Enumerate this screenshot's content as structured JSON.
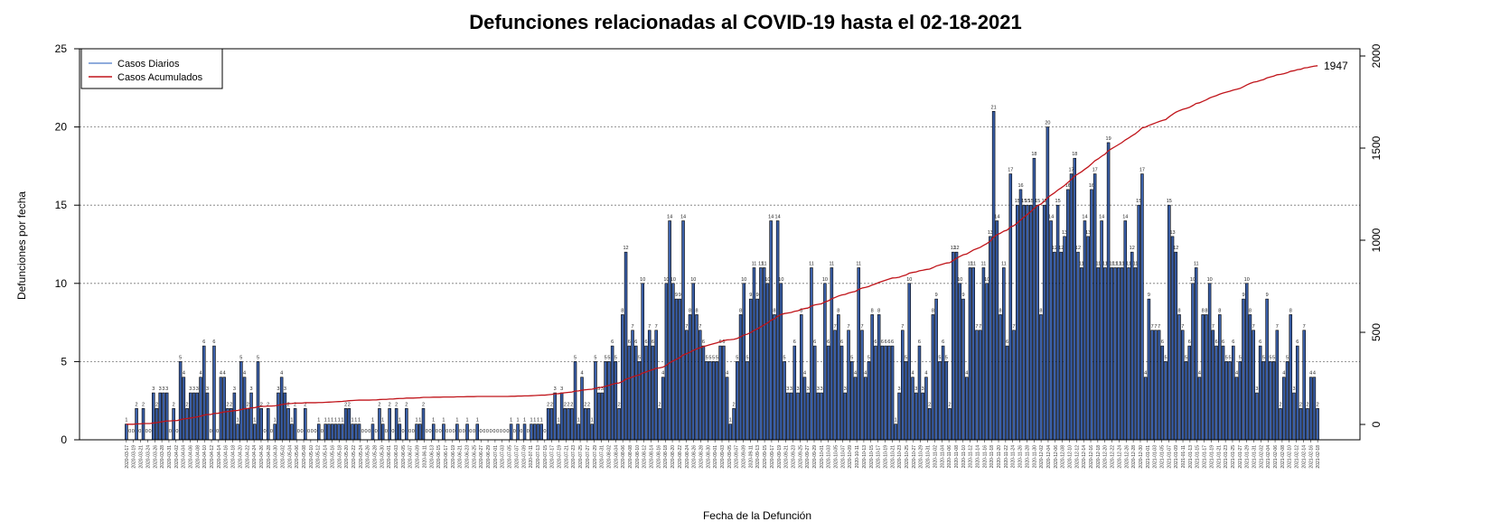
{
  "chart_data": {
    "type": "bar",
    "title": "Defunciones relacionadas al COVID-19 hasta el 02-18-2021",
    "xlabel": "Fecha de la Defunción",
    "ylabel": "Defunciones por fecha",
    "ylim": [
      0,
      25
    ],
    "y_ticks": [
      0,
      5,
      10,
      15,
      20,
      25
    ],
    "y2lim": [
      0,
      2000
    ],
    "y2_ticks": [
      0,
      500,
      1000,
      1500,
      2000
    ],
    "grid": "horizontal dotted",
    "legend_position": "top-left",
    "start_date": "2020-03-17",
    "end_date": "2021-02-18",
    "colors": {
      "bars": "#3a5fa8",
      "bar_edge": "#000000",
      "cumulative": "#c0141a",
      "daily_legend": "#6a8fd0"
    },
    "series": [
      {
        "name": "Casos Diarios",
        "values": [
          1,
          0,
          0,
          2,
          0,
          2,
          0,
          0,
          3,
          2,
          3,
          3,
          3,
          0,
          2,
          0,
          5,
          4,
          2,
          3,
          3,
          3,
          4,
          6,
          3,
          0,
          6,
          0,
          4,
          4,
          2,
          2,
          3,
          1,
          5,
          4,
          2,
          3,
          1,
          5,
          2,
          0,
          2,
          0,
          1,
          3,
          4,
          3,
          2,
          1,
          2,
          0,
          0,
          2,
          0,
          0,
          0,
          1,
          0,
          1,
          1,
          1,
          1,
          1,
          1,
          2,
          2,
          1,
          1,
          1,
          0,
          0,
          0,
          1,
          0,
          2,
          1,
          0,
          2,
          0,
          2,
          1,
          0,
          2,
          0,
          0,
          1,
          1,
          2,
          0,
          0,
          1,
          0,
          0,
          1,
          0,
          0,
          0,
          1,
          0,
          0,
          1,
          0,
          0,
          1,
          0,
          0,
          0,
          0,
          0,
          0,
          0,
          0,
          0,
          1,
          0,
          1,
          0,
          1,
          0,
          1,
          1,
          1,
          1,
          0,
          2,
          2,
          3,
          1,
          3,
          2,
          2,
          2,
          5,
          1,
          4,
          2,
          2,
          1,
          5,
          3,
          3,
          5,
          5,
          6,
          5,
          2,
          8,
          12,
          6,
          7,
          6,
          5,
          10,
          6,
          7,
          6,
          7,
          2,
          4,
          10,
          14,
          10,
          9,
          9,
          14,
          7,
          8,
          10,
          8,
          7,
          6,
          5,
          5,
          5,
          5,
          6,
          6,
          4,
          1,
          2,
          5,
          8,
          10,
          5,
          9,
          11,
          9,
          11,
          11,
          10,
          14,
          8,
          14,
          10,
          5,
          3,
          3,
          6,
          3,
          8,
          4,
          3,
          11,
          6,
          3,
          3,
          10,
          6,
          11,
          7,
          8,
          6,
          3,
          7,
          5,
          4,
          11,
          7,
          4,
          5,
          8,
          6,
          8,
          6,
          6,
          6,
          6,
          1,
          3,
          7,
          5,
          10,
          4,
          3,
          6,
          3,
          4,
          2,
          8,
          9,
          5,
          6,
          5,
          2,
          12,
          12,
          10,
          9,
          4,
          11,
          11,
          7,
          7,
          11,
          10,
          13,
          21,
          14,
          8,
          11,
          6,
          17,
          7,
          15,
          16,
          15,
          15,
          15,
          18,
          15,
          8,
          15,
          20,
          14,
          12,
          15,
          12,
          13,
          16,
          17,
          18,
          12,
          11,
          14,
          13,
          16,
          17,
          11,
          14,
          11,
          19,
          11,
          11,
          11,
          11,
          14,
          11,
          12,
          11,
          15,
          17,
          4,
          9,
          7,
          7,
          7,
          6,
          5,
          15,
          13,
          12,
          8,
          7,
          5,
          6,
          10,
          11,
          4,
          8,
          8,
          10,
          7,
          6,
          8,
          6,
          5,
          5,
          6,
          4,
          5,
          9,
          10,
          8,
          7,
          3,
          6,
          5,
          9,
          5,
          5,
          7,
          2,
          4,
          5,
          8,
          3,
          6,
          2,
          7,
          2,
          4,
          4,
          2
        ]
      },
      {
        "name": "Casos Acumulados",
        "final_value": 1947
      }
    ],
    "date_labels": [
      "2020-03-17",
      "2020-03-19",
      "2020-03-21",
      "2020-03-24",
      "2020-03-26",
      "2020-03-28",
      "2020-03-31",
      "2020-04-02",
      "2020-04-04",
      "2020-04-06",
      "2020-04-08",
      "2020-04-10",
      "2020-04-12",
      "2020-04-14",
      "2020-04-16",
      "2020-04-18",
      "2020-04-20",
      "2020-04-22",
      "2020-04-24",
      "2020-04-26",
      "2020-04-28",
      "2020-04-30",
      "2020-05-02",
      "2020-05-04",
      "2020-05-06",
      "2020-05-08",
      "2020-05-10",
      "2020-05-12",
      "2020-05-14",
      "2020-05-16",
      "2020-05-18",
      "2020-05-20",
      "2020-05-22",
      "2020-05-24",
      "2020-05-26",
      "2020-05-28",
      "2020-05-30",
      "2020-06-01",
      "2020-06-03",
      "2020-06-05",
      "2020-06-07",
      "2020-06-09",
      "2020-06-11",
      "2020-06-13",
      "2020-06-15",
      "2020-06-17",
      "2020-06-19",
      "2020-06-21",
      "2020-06-23",
      "2020-06-25",
      "2020-06-27",
      "2020-06-29",
      "2020-07-01",
      "2020-07-03",
      "2020-07-05",
      "2020-07-07",
      "2020-07-09",
      "2020-07-11",
      "2020-07-13",
      "2020-07-15",
      "2020-07-17",
      "2020-07-19",
      "2020-07-21",
      "2020-07-23",
      "2020-07-25",
      "2020-07-27",
      "2020-07-29",
      "2020-07-31",
      "2020-08-02",
      "2020-08-04",
      "2020-08-06",
      "2020-08-08",
      "2020-08-10",
      "2020-08-12",
      "2020-08-14",
      "2020-08-16",
      "2020-08-18",
      "2020-08-20",
      "2020-08-22",
      "2020-08-24",
      "2020-08-26",
      "2020-08-28",
      "2020-08-30",
      "2020-09-01",
      "2020-09-03",
      "2020-09-05",
      "2020-09-07",
      "2020-09-09",
      "2020-09-11",
      "2020-09-13",
      "2020-09-15",
      "2020-09-17",
      "2020-09-19",
      "2020-09-21",
      "2020-09-23",
      "2020-09-25",
      "2020-09-27",
      "2020-09-29",
      "2020-10-01",
      "2020-10-03",
      "2020-10-05",
      "2020-10-07",
      "2020-10-09",
      "2020-10-11",
      "2020-10-13",
      "2020-10-15",
      "2020-10-17",
      "2020-10-19",
      "2020-10-21",
      "2020-10-23",
      "2020-10-25",
      "2020-10-27",
      "2020-10-29",
      "2020-10-31",
      "2020-11-02",
      "2020-11-04",
      "2020-11-06",
      "2020-11-08",
      "2020-11-10",
      "2020-11-12",
      "2020-11-14",
      "2020-11-16",
      "2020-11-18",
      "2020-11-20",
      "2020-11-22",
      "2020-11-24",
      "2020-11-26",
      "2020-11-28",
      "2020-11-30",
      "2020-12-02",
      "2020-12-04",
      "2020-12-06",
      "2020-12-08",
      "2020-12-10",
      "2020-12-12",
      "2020-12-14",
      "2020-12-16",
      "2020-12-18",
      "2020-12-20",
      "2020-12-22",
      "2020-12-24",
      "2020-12-26",
      "2020-12-28",
      "2020-12-30",
      "2021-01-01",
      "2021-01-03",
      "2021-01-05",
      "2021-01-07",
      "2021-01-09",
      "2021-01-11",
      "2021-01-13",
      "2021-01-15",
      "2021-01-17",
      "2021-01-19",
      "2021-01-21",
      "2021-01-23",
      "2021-01-25",
      "2021-01-27",
      "2021-01-29",
      "2021-01-31",
      "2021-02-02",
      "2021-02-04",
      "2021-02-06",
      "2021-02-08",
      "2021-02-10",
      "2021-02-12",
      "2021-02-14",
      "2021-02-16",
      "2021-02-18"
    ]
  }
}
